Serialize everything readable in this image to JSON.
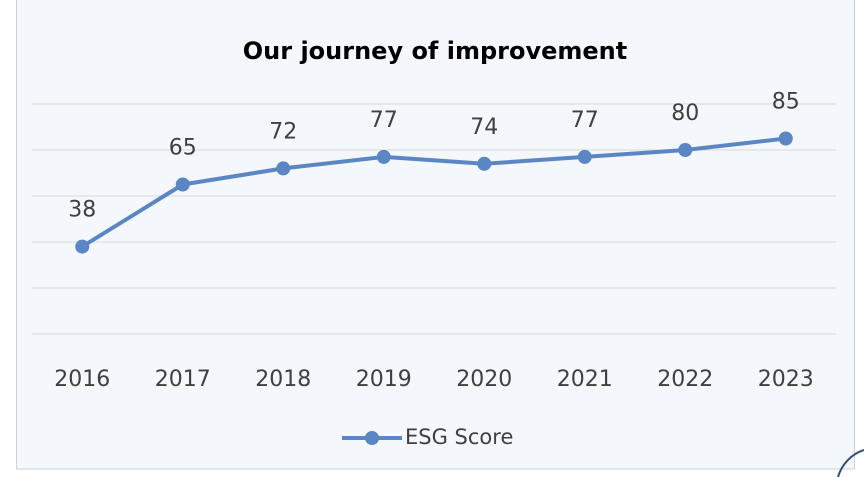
{
  "chart_data": {
    "type": "line",
    "title": "Our journey of improvement",
    "categories": [
      "2016",
      "2017",
      "2018",
      "2019",
      "2020",
      "2021",
      "2022",
      "2023"
    ],
    "series": [
      {
        "name": "ESG Score",
        "color": "#5a86c4",
        "values": [
          38,
          65,
          72,
          77,
          74,
          77,
          80,
          85
        ]
      }
    ],
    "ylim": [
      0,
      100
    ],
    "yticks": [
      0,
      20,
      40,
      60,
      80,
      100
    ],
    "grid": true,
    "legend": "bottom"
  }
}
